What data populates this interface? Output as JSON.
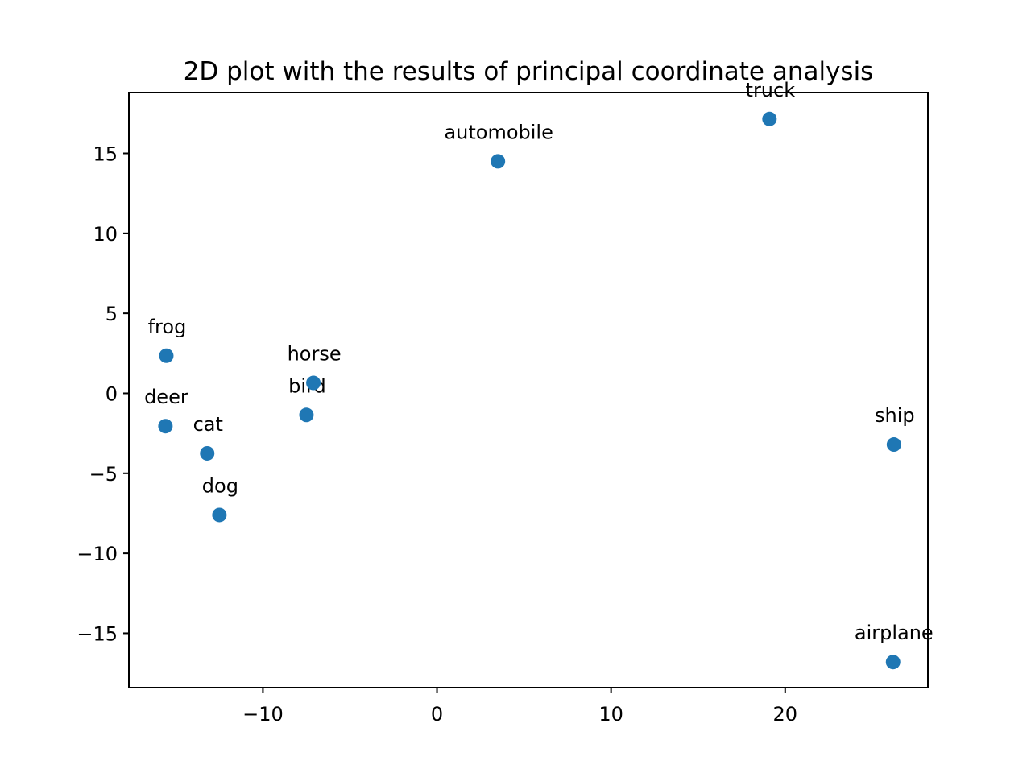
{
  "chart_data": {
    "type": "scatter",
    "title": "2D plot with the results of principal coordinate analysis",
    "xlabel": "",
    "ylabel": "",
    "xlim": [
      -17.7,
      28.2
    ],
    "ylim": [
      -18.4,
      18.8
    ],
    "xticks": [
      -10,
      0,
      10,
      20
    ],
    "yticks": [
      -15,
      -10,
      -5,
      0,
      5,
      10,
      15
    ],
    "xtick_labels": [
      "−10",
      "0",
      "10",
      "20"
    ],
    "ytick_labels": [
      "−15",
      "−10",
      "−5",
      "0",
      "5",
      "10",
      "15"
    ],
    "grid": false,
    "marker_color": "#1f77b4",
    "points": [
      {
        "label": "airplane",
        "x": 26.2,
        "y": -16.8
      },
      {
        "label": "automobile",
        "x": 3.5,
        "y": 14.5
      },
      {
        "label": "bird",
        "x": -7.5,
        "y": -1.35
      },
      {
        "label": "cat",
        "x": -13.2,
        "y": -3.75
      },
      {
        "label": "deer",
        "x": -15.6,
        "y": -2.05
      },
      {
        "label": "dog",
        "x": -12.5,
        "y": -7.6
      },
      {
        "label": "frog",
        "x": -15.55,
        "y": 2.35
      },
      {
        "label": "horse",
        "x": -7.1,
        "y": 0.65
      },
      {
        "label": "ship",
        "x": 26.25,
        "y": -3.2
      },
      {
        "label": "truck",
        "x": 19.1,
        "y": 17.15
      }
    ]
  }
}
